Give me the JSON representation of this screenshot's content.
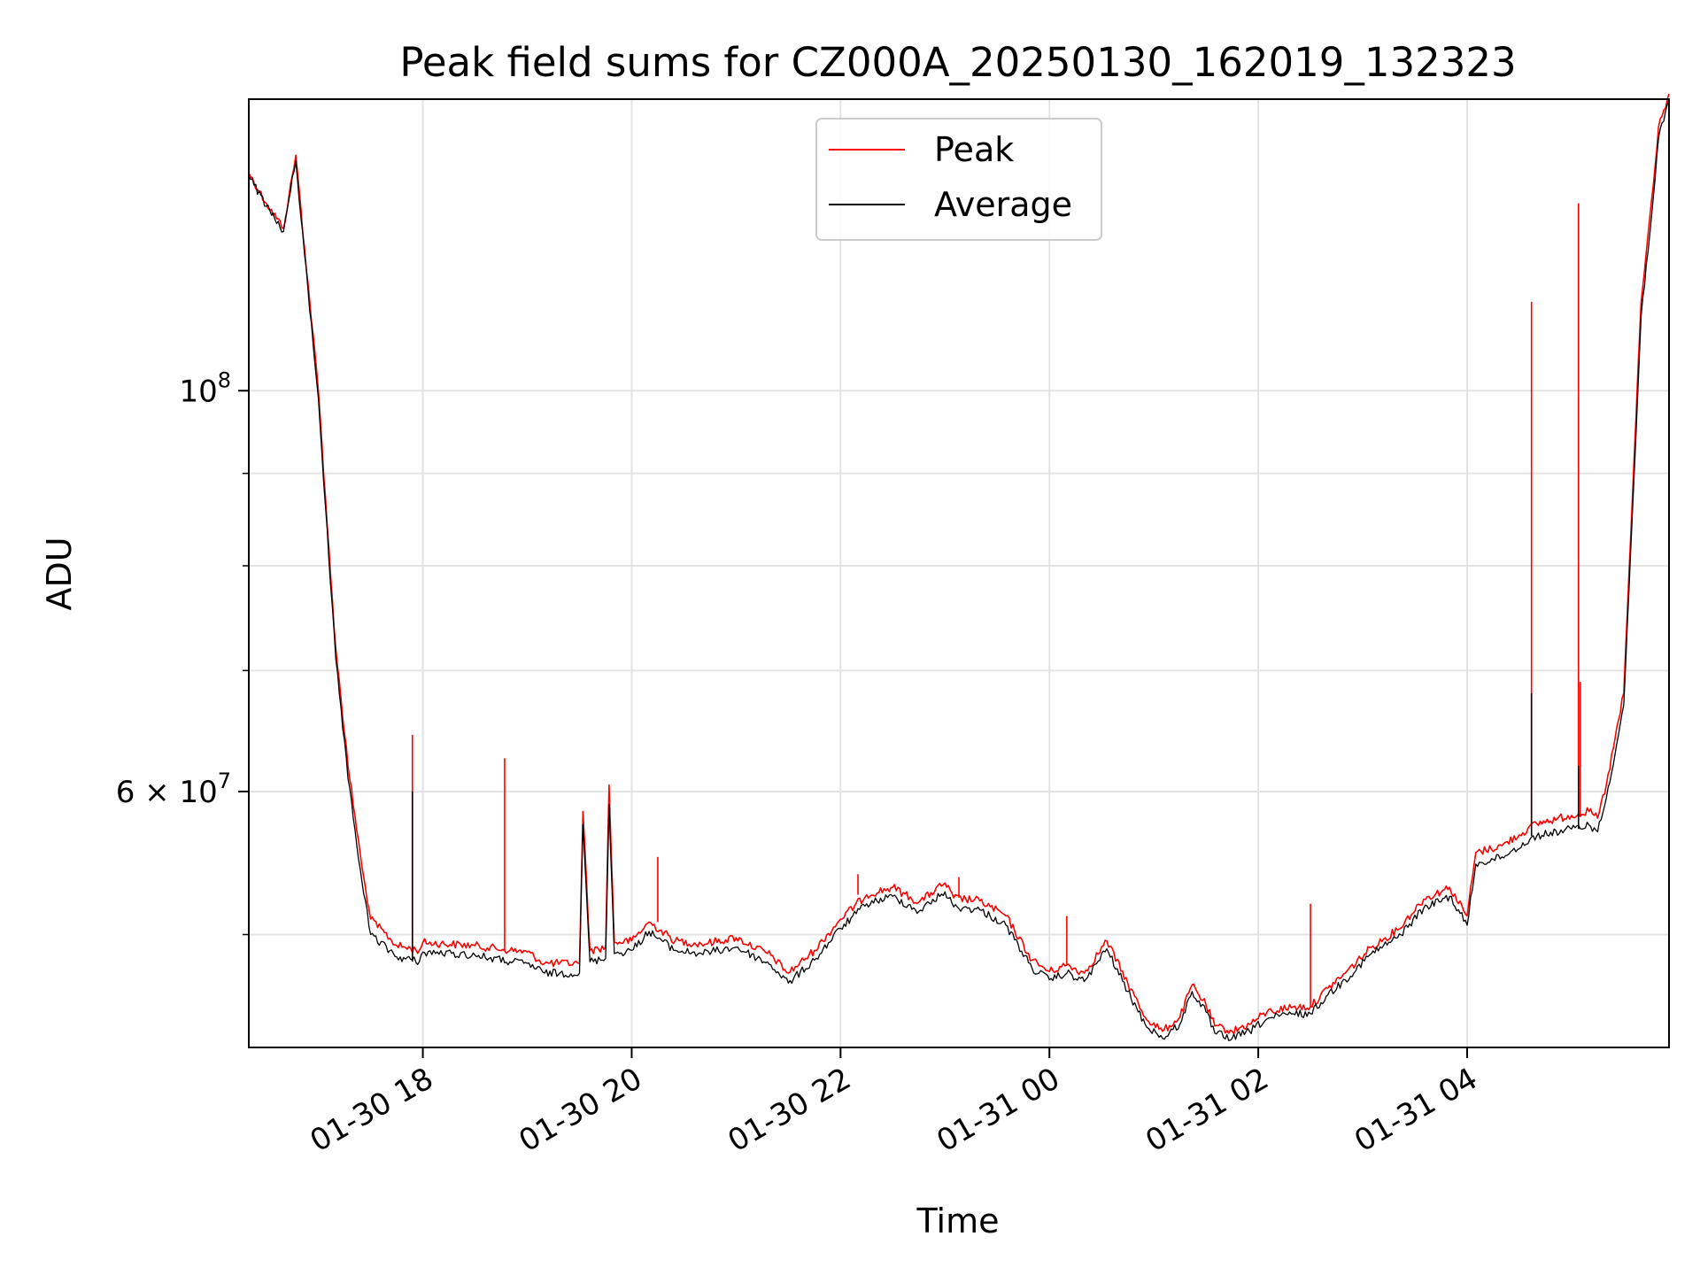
{
  "chart_data": {
    "type": "line",
    "title": "Peak field sums for CZ000A_20250130_162019_132323",
    "xlabel": "Time",
    "ylabel": "ADU",
    "y_scale": "log",
    "ylim": [
      43300000,
      145000000
    ],
    "xlim": [
      "2025-01-30 16:20",
      "2025-01-31 05:56"
    ],
    "x_ticks": [
      {
        "t": "2025-01-30 18:00",
        "label": "01-30 18"
      },
      {
        "t": "2025-01-30 20:00",
        "label": "01-30 20"
      },
      {
        "t": "2025-01-30 22:00",
        "label": "01-30 22"
      },
      {
        "t": "2025-01-31 00:00",
        "label": "01-31 00"
      },
      {
        "t": "2025-01-31 02:00",
        "label": "01-31 02"
      },
      {
        "t": "2025-01-31 04:00",
        "label": "01-31 04"
      }
    ],
    "y_ticks": [
      {
        "value": 100000000,
        "base": "10",
        "exp": "8"
      },
      {
        "value": 60000000,
        "base": "6 × 10",
        "exp": "7"
      }
    ],
    "y_minor_ticks": [
      50000000,
      70000000,
      80000000,
      90000000
    ],
    "grid": true,
    "legend_position": "upper-center",
    "colors": {
      "peak": "#ff0000",
      "average": "#000000"
    },
    "series": [
      {
        "name": "Peak",
        "color": "#ff0000",
        "points": [
          [
            "2025-01-30 16:20",
            132000000
          ],
          [
            "2025-01-30 16:30",
            127000000
          ],
          [
            "2025-01-30 16:40",
            123000000
          ],
          [
            "2025-01-30 16:43",
            128000000
          ],
          [
            "2025-01-30 16:47",
            135000000
          ],
          [
            "2025-01-30 16:52",
            120000000
          ],
          [
            "2025-01-30 17:00",
            100000000
          ],
          [
            "2025-01-30 17:07",
            79000000
          ],
          [
            "2025-01-30 17:10",
            72000000
          ],
          [
            "2025-01-30 17:17",
            62000000
          ],
          [
            "2025-01-30 17:25",
            54500000
          ],
          [
            "2025-01-30 17:30",
            51000000
          ],
          [
            "2025-01-30 17:45",
            49300000
          ],
          [
            "2025-01-30 17:58",
            49000000
          ],
          [
            "2025-01-30 18:00",
            49500000
          ],
          [
            "2025-01-30 18:30",
            49300000
          ],
          [
            "2025-01-30 18:50",
            49000000
          ],
          [
            "2025-01-30 19:00",
            48900000
          ],
          [
            "2025-01-30 19:10",
            48200000
          ],
          [
            "2025-01-30 19:30",
            48200000
          ],
          [
            "2025-01-30 19:32",
            58500000
          ],
          [
            "2025-01-30 19:36",
            49000000
          ],
          [
            "2025-01-30 19:45",
            49200000
          ],
          [
            "2025-01-30 19:47",
            60500000
          ],
          [
            "2025-01-30 19:50",
            49500000
          ],
          [
            "2025-01-30 20:00",
            49600000
          ],
          [
            "2025-01-30 20:10",
            50800000
          ],
          [
            "2025-01-30 20:25",
            49600000
          ],
          [
            "2025-01-30 20:40",
            49400000
          ],
          [
            "2025-01-30 21:00",
            49800000
          ],
          [
            "2025-01-30 21:20",
            48700000
          ],
          [
            "2025-01-30 21:30",
            47600000
          ],
          [
            "2025-01-30 21:45",
            49000000
          ],
          [
            "2025-01-30 22:00",
            51000000
          ],
          [
            "2025-01-30 22:15",
            52600000
          ],
          [
            "2025-01-30 22:30",
            53100000
          ],
          [
            "2025-01-30 22:45",
            52100000
          ],
          [
            "2025-01-30 23:00",
            53400000
          ],
          [
            "2025-01-30 23:05",
            52400000
          ],
          [
            "2025-01-30 23:20",
            52200000
          ],
          [
            "2025-01-30 23:35",
            51200000
          ],
          [
            "2025-01-30 23:50",
            48400000
          ],
          [
            "2025-01-31 00:00",
            47700000
          ],
          [
            "2025-01-31 00:10",
            48100000
          ],
          [
            "2025-01-31 00:20",
            47600000
          ],
          [
            "2025-01-31 00:33",
            49600000
          ],
          [
            "2025-01-31 00:45",
            47000000
          ],
          [
            "2025-01-31 00:55",
            45000000
          ],
          [
            "2025-01-31 01:05",
            44200000
          ],
          [
            "2025-01-31 01:15",
            45000000
          ],
          [
            "2025-01-31 01:22",
            46900000
          ],
          [
            "2025-01-31 01:30",
            45700000
          ],
          [
            "2025-01-31 01:35",
            44500000
          ],
          [
            "2025-01-31 01:45",
            44200000
          ],
          [
            "2025-01-31 01:55",
            44600000
          ],
          [
            "2025-01-31 02:05",
            45300000
          ],
          [
            "2025-01-31 02:20",
            45600000
          ],
          [
            "2025-01-31 02:30",
            45600000
          ],
          [
            "2025-01-31 02:40",
            46700000
          ],
          [
            "2025-01-31 02:50",
            47600000
          ],
          [
            "2025-01-31 03:05",
            49200000
          ],
          [
            "2025-01-31 03:20",
            50300000
          ],
          [
            "2025-01-31 03:35",
            52300000
          ],
          [
            "2025-01-31 03:50",
            53100000
          ],
          [
            "2025-01-31 04:00",
            51200000
          ],
          [
            "2025-01-31 04:05",
            55500000
          ],
          [
            "2025-01-31 04:20",
            56000000
          ],
          [
            "2025-01-31 04:40",
            57600000
          ],
          [
            "2025-01-31 05:00",
            58200000
          ],
          [
            "2025-01-31 05:10",
            58500000
          ],
          [
            "2025-01-31 05:15",
            58000000
          ],
          [
            "2025-01-31 05:20",
            60500000
          ],
          [
            "2025-01-31 05:30",
            68000000
          ],
          [
            "2025-01-31 05:36",
            92000000
          ],
          [
            "2025-01-31 05:40",
            112000000
          ],
          [
            "2025-01-31 05:47",
            130000000
          ],
          [
            "2025-01-31 05:50",
            140000000
          ],
          [
            "2025-01-31 05:53",
            143000000
          ],
          [
            "2025-01-31 05:56",
            146000000
          ]
        ],
        "spikes": [
          [
            "2025-01-30 17:54",
            64500000
          ],
          [
            "2025-01-30 18:47",
            62600000
          ],
          [
            "2025-01-30 20:15",
            55200000
          ],
          [
            "2025-01-30 22:10",
            54000000
          ],
          [
            "2025-01-30 23:08",
            53800000
          ],
          [
            "2025-01-31 00:10",
            51200000
          ],
          [
            "2025-01-31 02:30",
            52000000
          ],
          [
            "2025-01-31 04:37",
            112000000
          ],
          [
            "2025-01-31 05:04",
            127000000
          ],
          [
            "2025-01-31 05:05",
            69000000
          ]
        ]
      },
      {
        "name": "Average",
        "color": "#000000",
        "points": [
          [
            "2025-01-30 16:20",
            131500000
          ],
          [
            "2025-01-30 16:30",
            126500000
          ],
          [
            "2025-01-30 16:40",
            122500000
          ],
          [
            "2025-01-30 16:43",
            127500000
          ],
          [
            "2025-01-30 16:47",
            134000000
          ],
          [
            "2025-01-30 16:52",
            119000000
          ],
          [
            "2025-01-30 17:00",
            99000000
          ],
          [
            "2025-01-30 17:07",
            78000000
          ],
          [
            "2025-01-30 17:10",
            71000000
          ],
          [
            "2025-01-30 17:17",
            61000000
          ],
          [
            "2025-01-30 17:25",
            53500000
          ],
          [
            "2025-01-30 17:30",
            50000000
          ],
          [
            "2025-01-30 17:45",
            48600000
          ],
          [
            "2025-01-30 17:58",
            48300000
          ],
          [
            "2025-01-30 18:00",
            48900000
          ],
          [
            "2025-01-30 18:30",
            48700000
          ],
          [
            "2025-01-30 18:50",
            48300000
          ],
          [
            "2025-01-30 19:00",
            48200000
          ],
          [
            "2025-01-30 19:10",
            47600000
          ],
          [
            "2025-01-30 19:30",
            47600000
          ],
          [
            "2025-01-30 19:32",
            57500000
          ],
          [
            "2025-01-30 19:36",
            48300000
          ],
          [
            "2025-01-30 19:45",
            48500000
          ],
          [
            "2025-01-30 19:47",
            59000000
          ],
          [
            "2025-01-30 19:50",
            48800000
          ],
          [
            "2025-01-30 20:00",
            49000000
          ],
          [
            "2025-01-30 20:10",
            50200000
          ],
          [
            "2025-01-30 20:25",
            49000000
          ],
          [
            "2025-01-30 20:40",
            48800000
          ],
          [
            "2025-01-30 21:00",
            49200000
          ],
          [
            "2025-01-30 21:20",
            48100000
          ],
          [
            "2025-01-30 21:30",
            47000000
          ],
          [
            "2025-01-30 21:45",
            48400000
          ],
          [
            "2025-01-30 22:00",
            50400000
          ],
          [
            "2025-01-30 22:15",
            52000000
          ],
          [
            "2025-01-30 22:30",
            52500000
          ],
          [
            "2025-01-30 22:45",
            51500000
          ],
          [
            "2025-01-30 23:00",
            52800000
          ],
          [
            "2025-01-30 23:05",
            51800000
          ],
          [
            "2025-01-30 23:20",
            51600000
          ],
          [
            "2025-01-30 23:35",
            50600000
          ],
          [
            "2025-01-30 23:50",
            47900000
          ],
          [
            "2025-01-31 00:00",
            47200000
          ],
          [
            "2025-01-31 00:10",
            47600000
          ],
          [
            "2025-01-31 00:20",
            47100000
          ],
          [
            "2025-01-31 00:33",
            49100000
          ],
          [
            "2025-01-31 00:45",
            46500000
          ],
          [
            "2025-01-31 00:55",
            44600000
          ],
          [
            "2025-01-31 01:05",
            43800000
          ],
          [
            "2025-01-31 01:15",
            44600000
          ],
          [
            "2025-01-31 01:22",
            46500000
          ],
          [
            "2025-01-31 01:30",
            45300000
          ],
          [
            "2025-01-31 01:35",
            44100000
          ],
          [
            "2025-01-31 01:45",
            43800000
          ],
          [
            "2025-01-31 01:55",
            44200000
          ],
          [
            "2025-01-31 02:05",
            44900000
          ],
          [
            "2025-01-31 02:20",
            45200000
          ],
          [
            "2025-01-31 02:30",
            45200000
          ],
          [
            "2025-01-31 02:40",
            46300000
          ],
          [
            "2025-01-31 02:50",
            47200000
          ],
          [
            "2025-01-31 03:05",
            48800000
          ],
          [
            "2025-01-31 03:20",
            49800000
          ],
          [
            "2025-01-31 03:35",
            51700000
          ],
          [
            "2025-01-31 03:50",
            52500000
          ],
          [
            "2025-01-31 04:00",
            50600000
          ],
          [
            "2025-01-31 04:05",
            54700000
          ],
          [
            "2025-01-31 04:20",
            55200000
          ],
          [
            "2025-01-31 04:40",
            56700000
          ],
          [
            "2025-01-31 05:00",
            57200000
          ],
          [
            "2025-01-31 05:10",
            57500000
          ],
          [
            "2025-01-31 05:15",
            57000000
          ],
          [
            "2025-01-31 05:20",
            59500000
          ],
          [
            "2025-01-31 05:30",
            67000000
          ],
          [
            "2025-01-31 05:36",
            90000000
          ],
          [
            "2025-01-31 05:40",
            110000000
          ],
          [
            "2025-01-31 05:47",
            128000000
          ],
          [
            "2025-01-31 05:50",
            138000000
          ],
          [
            "2025-01-31 05:53",
            141000000
          ],
          [
            "2025-01-31 05:56",
            145000000
          ]
        ],
        "spikes": [
          [
            "2025-01-30 17:54",
            60000000
          ],
          [
            "2025-01-31 04:37",
            68000000
          ],
          [
            "2025-01-31 05:04",
            62000000
          ]
        ]
      }
    ]
  }
}
